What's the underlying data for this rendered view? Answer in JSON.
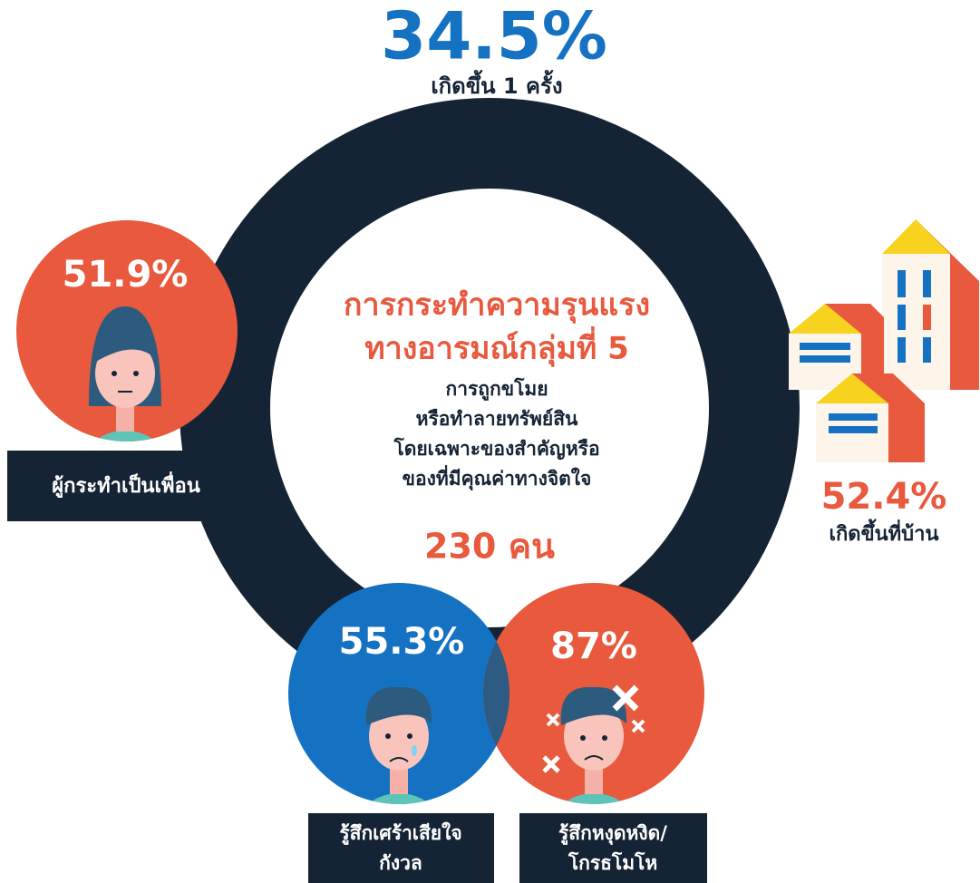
{
  "top": {
    "value": "34.5%",
    "label": "เกิดขึ้น 1 ครั้ง"
  },
  "center": {
    "title_lines": [
      "การกระทำความรุนแรง",
      "ทางอารมณ์กลุ่มที่ 5"
    ],
    "desc_lines": [
      "การถูกขโมย",
      "หรือทำลายทรัพย์สิน",
      "โดยเฉพาะของสำคัญหรือ",
      "ของที่มีคุณค่าทางจิตใจ"
    ],
    "count": "230 คน"
  },
  "friend": {
    "value": "51.9%",
    "label": "ผู้กระทำเป็นเพื่อน"
  },
  "home": {
    "value": "52.4%",
    "label": "เกิดขึ้นที่บ้าน"
  },
  "sad": {
    "value": "55.3%",
    "label_lines": [
      "รู้สึกเศร้าเสียใจ",
      "กังวล"
    ]
  },
  "angry": {
    "value": "87%",
    "label_lines": [
      "รู้สึกหงุดหงิด/",
      "โกรธโมโห"
    ]
  }
}
